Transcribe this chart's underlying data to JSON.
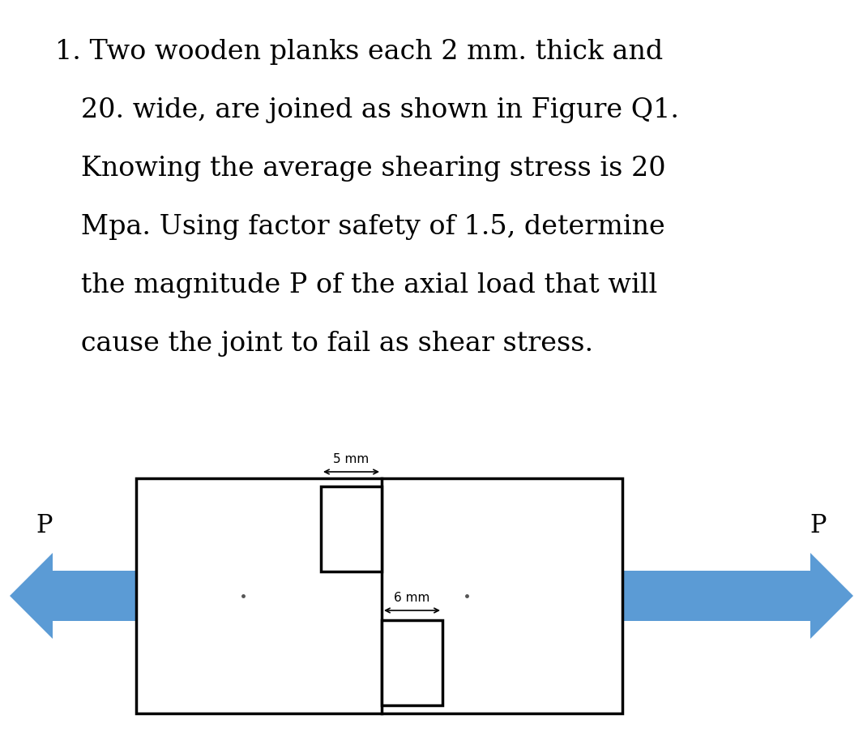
{
  "text_lines": [
    "1. Two wooden planks each 2 mm. thick and",
    "   20. wide, are joined as shown in Figure Q1.",
    "   Knowing the average shearing stress is 20",
    "   Mpa. Using factor safety of 1.5, determine",
    "   the magnitude P of the axial load that will",
    "   cause the joint to fail as shear stress."
  ],
  "bg_color": "#ffffff",
  "text_color": "#000000",
  "arrow_color": "#5b9bd5",
  "dim_color": "#000000",
  "line_color": "#000000",
  "title_fontsize": 24,
  "label_fontsize": 11,
  "p_label_fontsize": 22,
  "dim_5mm_label": "5 mm",
  "dim_6mm_label": "6 mm",
  "p_left": "P",
  "p_right": "P"
}
